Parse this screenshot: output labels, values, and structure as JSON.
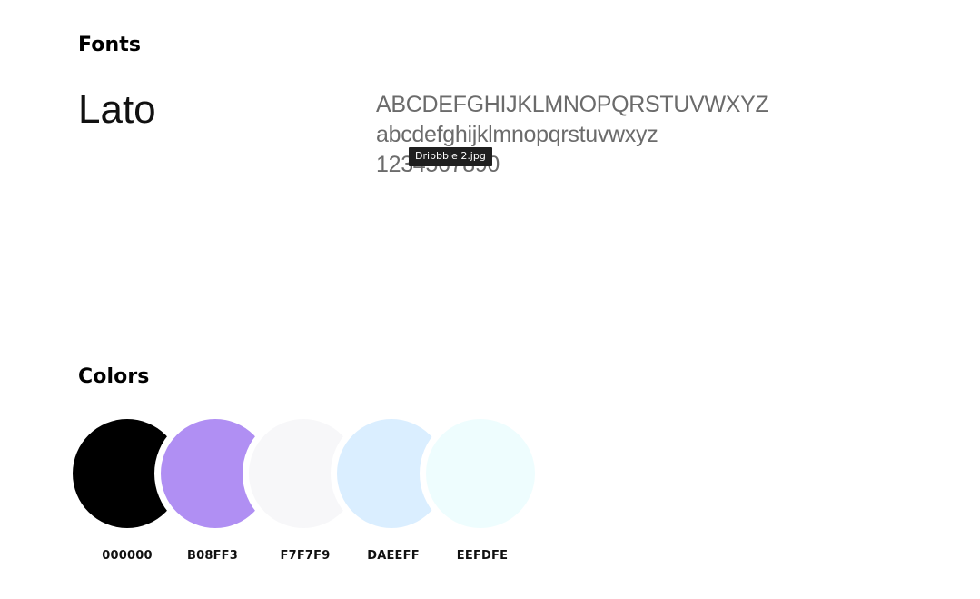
{
  "fonts": {
    "title": "Fonts",
    "font_name": "Lato",
    "sample_upper": "ABCDEFGHIJKLMNOPQRSTUVWXYZ",
    "sample_lower": "abcdefghijklmnopqrstuvwxyz",
    "sample_digits": "1234567890"
  },
  "tooltip": {
    "text": "Dribbble 2.jpg"
  },
  "colors": {
    "title": "Colors",
    "swatches": [
      {
        "label": "000000",
        "hex": "#000000"
      },
      {
        "label": "B08FF3",
        "hex": "#B08FF3"
      },
      {
        "label": "F7F7F9",
        "hex": "#F7F7F9"
      },
      {
        "label": "DAEEFF",
        "hex": "#DAEEFF"
      },
      {
        "label": "EEFDFE",
        "hex": "#EEFDFE"
      }
    ]
  }
}
